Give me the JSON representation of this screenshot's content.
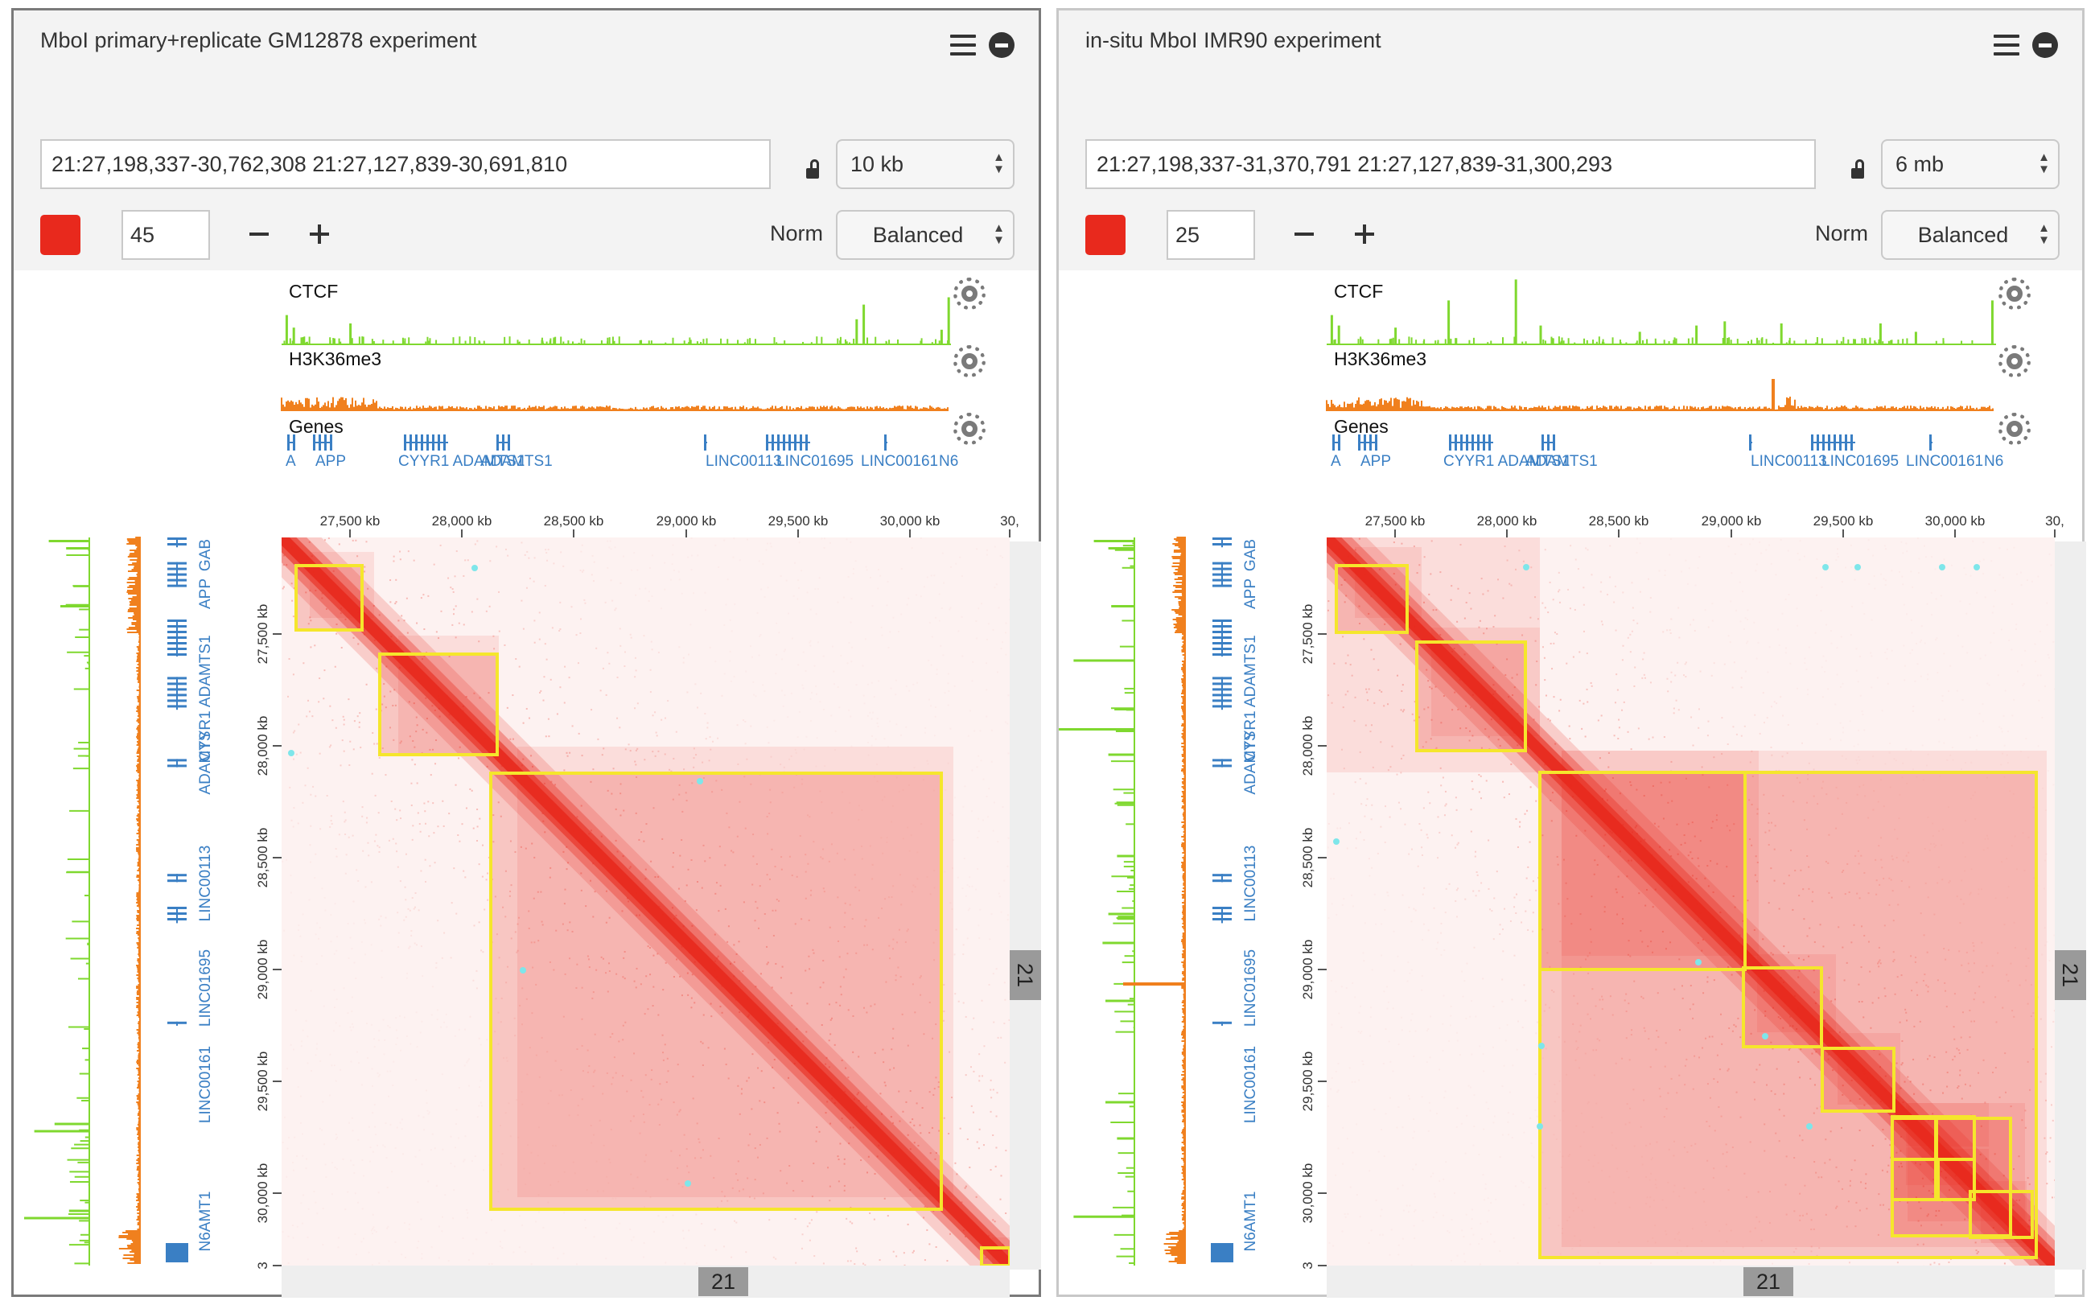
{
  "panels": [
    {
      "title": "MboI primary+replicate GM12878 experiment",
      "locus": "21:27,198,337-30,762,308 21:27,127,839-30,691,810",
      "resolution": "10 kb",
      "color_threshold": "45",
      "norm_label": "Norm",
      "norm_value": "Balanced",
      "chromosome_h": "21",
      "chromosome_v": "21",
      "color": "#e8291d",
      "tracks": [
        {
          "name": "CTCF",
          "color": "#7fd82f"
        },
        {
          "name": "H3K36me3",
          "color": "#f0801e"
        },
        {
          "name": "Genes",
          "color": "#3a7fc4"
        }
      ],
      "genes": [
        "A",
        "APP",
        "CYYR1 ADAMTS1",
        "ADAMTS1",
        "LINC00113",
        "LINC01695",
        "LINC00161",
        "N6"
      ],
      "genes_v": [
        "GAB",
        "APP",
        "CYYR1 ADAMTS1",
        "ADAMTS",
        "LINC00113",
        "LINC01695",
        "LINC00161",
        "N6AMT1"
      ],
      "x_ticks": [
        "27,500 kb",
        "28,000 kb",
        "28,500 kb",
        "29,000 kb",
        "29,500 kb",
        "30,000 kb",
        "30,"
      ],
      "y_ticks": [
        "27,500 kb",
        "28,000 kb",
        "28,500 kb",
        "29,000 kb",
        "29,500 kb",
        "30,000 kb",
        "3"
      ],
      "domains": [
        "TAD 1",
        "TAD 2",
        "TAD 3",
        "TAD 4"
      ],
      "loops": [
        "loop 1",
        "loop 2",
        "loop 3",
        "loop 4",
        "loop 5"
      ]
    },
    {
      "title": "in-situ MboI IMR90 experiment",
      "locus": "21:27,198,337-31,370,791 21:27,127,839-31,300,293",
      "resolution": "6 mb",
      "color_threshold": "25",
      "norm_label": "Norm",
      "norm_value": "Balanced",
      "chromosome_h": "21",
      "chromosome_v": "21",
      "color": "#e8291d",
      "tracks": [
        {
          "name": "CTCF",
          "color": "#7fd82f"
        },
        {
          "name": "H3K36me3",
          "color": "#f0801e"
        },
        {
          "name": "Genes",
          "color": "#3a7fc4"
        }
      ],
      "genes": [
        "A",
        "APP",
        "CYYR1 ADAMTS1",
        "ADAMTS1",
        "LINC00113",
        "LINC01695",
        "LINC00161",
        "N6"
      ],
      "genes_v": [
        "GAB",
        "APP",
        "CYYR1 ADAMTS1",
        "ADAMTS",
        "LINC00113",
        "LINC01695",
        "LINC00161",
        "N6AMT1"
      ],
      "x_ticks": [
        "27,500 kb",
        "28,000 kb",
        "28,500 kb",
        "29,000 kb",
        "29,500 kb",
        "30,000 kb",
        "30,"
      ],
      "y_ticks": [
        "27,500 kb",
        "28,000 kb",
        "28,500 kb",
        "29,000 kb",
        "29,500 kb",
        "30,000 kb",
        "3"
      ],
      "domains": [
        "TAD 1",
        "TAD 2",
        "TAD 3",
        "TAD 4",
        "TAD 5",
        "TAD 6",
        "TAD 7",
        "TAD 8",
        "TAD 9",
        "TAD 10",
        "TAD 11",
        "TAD 12"
      ],
      "loops": [
        "loop 1",
        "loop 2",
        "loop 3",
        "loop 4",
        "loop 5",
        "loop 6",
        "loop 7",
        "loop 8",
        "loop 9",
        "loop 10",
        "loop 11",
        "loop 12"
      ]
    }
  ]
}
